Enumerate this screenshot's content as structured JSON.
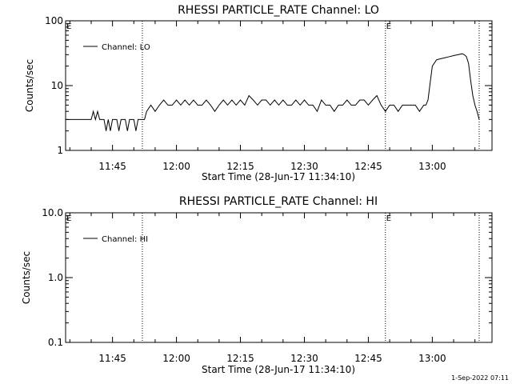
{
  "chart_data": [
    {
      "type": "line",
      "title": "RHESSI PARTICLE_RATE Channel: LO",
      "xlabel": "Start Time (28-Jun-17 11:34:10)",
      "ylabel": "Counts/sec",
      "yscale": "log",
      "ylim": [
        1,
        100
      ],
      "ytick_labels": [
        "1",
        "10",
        "100"
      ],
      "xlim": [
        "11:34",
        "13:14"
      ],
      "xtick_labels": [
        "11:45",
        "12:00",
        "12:15",
        "12:30",
        "12:45",
        "13:00"
      ],
      "grid": false,
      "legend_position": "top-left",
      "vertical_markers": [
        "11:52",
        "12:49",
        "13:11"
      ],
      "marker_flags": [
        {
          "x": "11:34",
          "text": "E"
        },
        {
          "x": "12:49",
          "text": "E"
        }
      ],
      "series": [
        {
          "name": "Channel: LO",
          "x": [
            "11:34",
            "11:40",
            "11:40.5",
            "11:41",
            "11:41.5",
            "11:42",
            "11:42.5",
            "11:43",
            "11:43.5",
            "11:44",
            "11:44.5",
            "11:45",
            "11:45.5",
            "11:46",
            "11:46.5",
            "11:47",
            "11:47.5",
            "11:48",
            "11:48.5",
            "11:49",
            "11:49.5",
            "11:50",
            "11:50.5",
            "11:51",
            "11:51.5",
            "11:52",
            "11:52.5",
            "11:53",
            "11:54",
            "11:55",
            "11:56",
            "11:57",
            "11:58",
            "11:59",
            "12:00",
            "12:01",
            "12:02",
            "12:03",
            "12:04",
            "12:05",
            "12:06",
            "12:07",
            "12:08",
            "12:09",
            "12:10",
            "12:11",
            "12:12",
            "12:13",
            "12:14",
            "12:15",
            "12:16",
            "12:17",
            "12:18",
            "12:19",
            "12:20",
            "12:21",
            "12:22",
            "12:23",
            "12:24",
            "12:25",
            "12:26",
            "12:27",
            "12:28",
            "12:29",
            "12:30",
            "12:31",
            "12:32",
            "12:33",
            "12:34",
            "12:35",
            "12:36",
            "12:37",
            "12:38",
            "12:39",
            "12:40",
            "12:41",
            "12:42",
            "12:43",
            "12:44",
            "12:45",
            "12:46",
            "12:47",
            "12:48",
            "12:49",
            "12:50",
            "12:51",
            "12:52",
            "12:53",
            "12:54",
            "12:55",
            "12:56",
            "12:57",
            "12:58",
            "12:58.5",
            "12:59",
            "12:59.5",
            "13:00",
            "13:01",
            "13:02",
            "13:03",
            "13:04",
            "13:05",
            "13:06",
            "13:07",
            "13:07.5",
            "13:08",
            "13:08.5",
            "13:09",
            "13:09.5",
            "13:10",
            "13:10.5",
            "13:11"
          ],
          "values": [
            3,
            3,
            4,
            3,
            4,
            3,
            3,
            3,
            2,
            3,
            2,
            3,
            3,
            3,
            2,
            3,
            3,
            3,
            2,
            3,
            3,
            3,
            2,
            3,
            3,
            3,
            3,
            4,
            5,
            4,
            5,
            6,
            5,
            5,
            6,
            5,
            6,
            5,
            6,
            5,
            5,
            6,
            5,
            4,
            5,
            6,
            5,
            6,
            5,
            6,
            5,
            7,
            6,
            5,
            6,
            6,
            5,
            6,
            5,
            6,
            5,
            5,
            6,
            5,
            6,
            5,
            5,
            4,
            6,
            5,
            5,
            4,
            5,
            5,
            6,
            5,
            5,
            6,
            6,
            5,
            6,
            7,
            5,
            4,
            5,
            5,
            4,
            5,
            5,
            5,
            5,
            4,
            5,
            5,
            6,
            11,
            20,
            25,
            26,
            27,
            28,
            29,
            30,
            31,
            30,
            28,
            22,
            12,
            7,
            5,
            4,
            3
          ]
        }
      ]
    },
    {
      "type": "line",
      "title": "RHESSI PARTICLE_RATE Channel: HI",
      "xlabel": "Start Time (28-Jun-17 11:34:10)",
      "ylabel": "Counts/sec",
      "yscale": "log",
      "ylim": [
        0.1,
        10
      ],
      "ytick_labels": [
        "0.1",
        "1.0",
        "10.0"
      ],
      "xlim": [
        "11:34",
        "13:14"
      ],
      "xtick_labels": [
        "11:45",
        "12:00",
        "12:15",
        "12:30",
        "12:45",
        "13:00"
      ],
      "grid": false,
      "legend_position": "top-left",
      "vertical_markers": [
        "11:52",
        "12:49",
        "13:11"
      ],
      "marker_flags": [
        {
          "x": "11:34",
          "text": "E"
        },
        {
          "x": "12:49",
          "text": "E"
        }
      ],
      "series": [
        {
          "name": "Channel: HI",
          "x": [],
          "values": []
        }
      ]
    }
  ],
  "footer": {
    "timestamp": "1-Sep-2022 07:11"
  }
}
